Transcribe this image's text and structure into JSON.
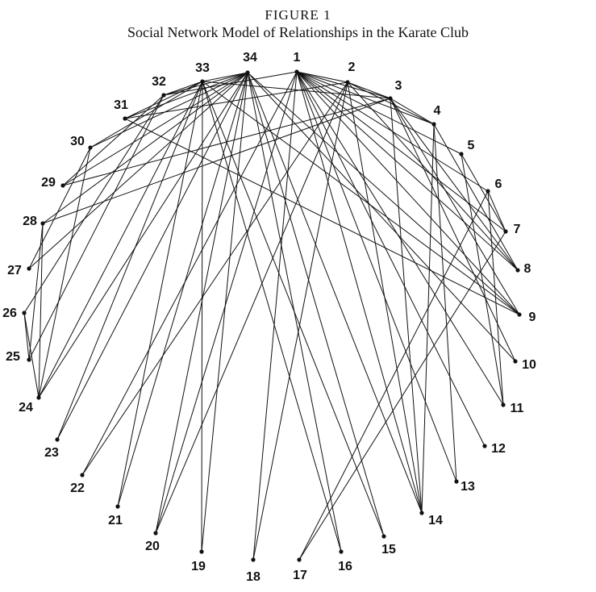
{
  "figure": {
    "label": "FIGURE 1",
    "title": "Social Network Model of Relationships in the Karate Club"
  },
  "nodes": [
    "1",
    "2",
    "3",
    "4",
    "5",
    "6",
    "7",
    "8",
    "9",
    "10",
    "11",
    "12",
    "13",
    "14",
    "15",
    "16",
    "17",
    "18",
    "19",
    "20",
    "21",
    "22",
    "23",
    "24",
    "25",
    "26",
    "27",
    "28",
    "29",
    "30",
    "31",
    "32",
    "33",
    "34"
  ],
  "edges": [
    [
      1,
      2
    ],
    [
      1,
      3
    ],
    [
      1,
      4
    ],
    [
      1,
      5
    ],
    [
      1,
      6
    ],
    [
      1,
      7
    ],
    [
      1,
      8
    ],
    [
      1,
      9
    ],
    [
      1,
      11
    ],
    [
      1,
      12
    ],
    [
      1,
      13
    ],
    [
      1,
      14
    ],
    [
      1,
      18
    ],
    [
      1,
      20
    ],
    [
      1,
      22
    ],
    [
      1,
      32
    ],
    [
      2,
      3
    ],
    [
      2,
      4
    ],
    [
      2,
      8
    ],
    [
      2,
      14
    ],
    [
      2,
      18
    ],
    [
      2,
      20
    ],
    [
      2,
      22
    ],
    [
      2,
      31
    ],
    [
      3,
      4
    ],
    [
      3,
      8
    ],
    [
      3,
      9
    ],
    [
      3,
      10
    ],
    [
      3,
      14
    ],
    [
      3,
      28
    ],
    [
      3,
      29
    ],
    [
      3,
      33
    ],
    [
      4,
      8
    ],
    [
      4,
      13
    ],
    [
      4,
      14
    ],
    [
      5,
      7
    ],
    [
      5,
      11
    ],
    [
      6,
      7
    ],
    [
      6,
      11
    ],
    [
      6,
      17
    ],
    [
      7,
      17
    ],
    [
      9,
      31
    ],
    [
      9,
      33
    ],
    [
      9,
      34
    ],
    [
      10,
      34
    ],
    [
      14,
      34
    ],
    [
      15,
      33
    ],
    [
      15,
      34
    ],
    [
      16,
      33
    ],
    [
      16,
      34
    ],
    [
      19,
      33
    ],
    [
      19,
      34
    ],
    [
      20,
      34
    ],
    [
      21,
      33
    ],
    [
      21,
      34
    ],
    [
      23,
      33
    ],
    [
      23,
      34
    ],
    [
      24,
      26
    ],
    [
      24,
      28
    ],
    [
      24,
      30
    ],
    [
      24,
      33
    ],
    [
      24,
      34
    ],
    [
      25,
      26
    ],
    [
      25,
      28
    ],
    [
      25,
      32
    ],
    [
      26,
      32
    ],
    [
      27,
      30
    ],
    [
      27,
      34
    ],
    [
      28,
      34
    ],
    [
      29,
      32
    ],
    [
      29,
      34
    ],
    [
      30,
      33
    ],
    [
      30,
      34
    ],
    [
      31,
      33
    ],
    [
      31,
      34
    ],
    [
      32,
      33
    ],
    [
      32,
      34
    ],
    [
      33,
      34
    ]
  ]
}
